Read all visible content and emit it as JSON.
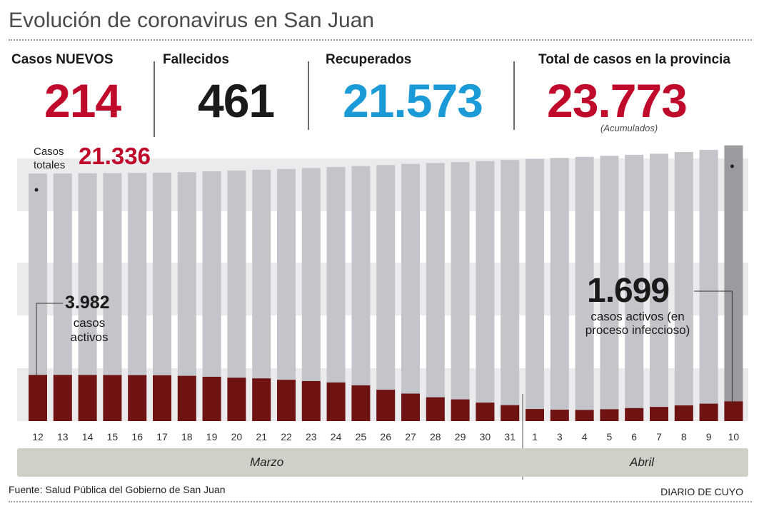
{
  "title": "Evolución de coronavirus en San Juan",
  "stats": [
    {
      "label": "Casos NUEVOS",
      "value": "214",
      "color": "#c00a2b"
    },
    {
      "label": "Fallecidos",
      "value": "461",
      "color": "#1a1a1a"
    },
    {
      "label": "Recuperados",
      "value": "21.573",
      "color": "#1a9ad6"
    },
    {
      "label": "Total de casos en la provincia",
      "value": "23.773",
      "color": "#c00a2b",
      "note": "(Acumulados)"
    }
  ],
  "annotations": {
    "total_label": "Casos totales",
    "total_value": "21.336",
    "active_start_value": "3.982",
    "active_start_label": "casos activos",
    "active_end_value": "1.699",
    "active_end_label": "casos activos (en proceso infeccioso)"
  },
  "months": [
    "Marzo",
    "Abril"
  ],
  "source": "Fuente: Salud Pública del Gobierno de San Juan",
  "brand": "DIARIO DE CUYO",
  "colors": {
    "total_bar": "#c4c4cb",
    "last_total_bar": "#9a9a9f",
    "active_bar": "#6e1311",
    "band": "#ebebee"
  },
  "chart_data": {
    "type": "bar",
    "categories": [
      "12",
      "13",
      "14",
      "15",
      "16",
      "17",
      "18",
      "19",
      "20",
      "21",
      "22",
      "23",
      "24",
      "25",
      "26",
      "27",
      "28",
      "29",
      "30",
      "31",
      "1",
      "3",
      "4",
      "5",
      "6",
      "7",
      "8",
      "9",
      "10"
    ],
    "series": [
      {
        "name": "Casos totales",
        "values": [
          21336,
          21350,
          21365,
          21380,
          21395,
          21410,
          21460,
          21540,
          21600,
          21670,
          21740,
          21820,
          21900,
          21990,
          22080,
          22170,
          22250,
          22330,
          22420,
          22510,
          22600,
          22690,
          22780,
          22870,
          22960,
          23050,
          23200,
          23390,
          23773
        ]
      },
      {
        "name": "Casos activos",
        "values": [
          3982,
          3980,
          3975,
          3970,
          3965,
          3950,
          3900,
          3820,
          3740,
          3680,
          3560,
          3450,
          3330,
          3080,
          2700,
          2370,
          2050,
          1870,
          1590,
          1370,
          1040,
          980,
          960,
          1020,
          1120,
          1220,
          1350,
          1500,
          1699
        ]
      }
    ],
    "ylim": [
      0,
      24000
    ],
    "grid": false
  }
}
